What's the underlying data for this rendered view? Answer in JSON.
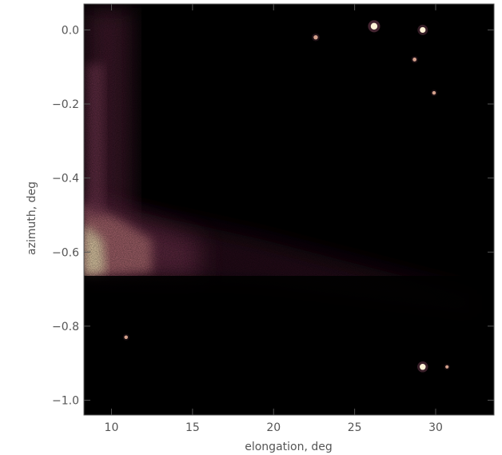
{
  "chart_data": {
    "type": "heatmap",
    "title": "",
    "xlabel": "elongation, deg",
    "ylabel": "azimuth, deg",
    "xlim": [
      8.3,
      33.6
    ],
    "ylim": [
      -1.04,
      0.07
    ],
    "x_ticks": [
      10,
      15,
      20,
      25,
      30
    ],
    "y_ticks": [
      0.0,
      -0.2,
      -0.4,
      -0.6,
      -0.8,
      -1.0
    ],
    "x_tick_labels": [
      "10",
      "15",
      "20",
      "25",
      "30"
    ],
    "y_tick_labels": [
      "0.0",
      "−0.2",
      "−0.4",
      "−0.6",
      "−0.8",
      "−1.0"
    ],
    "colormap": [
      "#000000",
      "#2a0e1c",
      "#5a2440",
      "#94506a",
      "#d4a18c",
      "#fff3d6"
    ],
    "grid": false,
    "bright_band": {
      "azimuth_range": [
        -0.66,
        -0.44
      ],
      "elongation_max": 18,
      "peak_intensity": 1.0
    },
    "stars": [
      {
        "x": 26.2,
        "y": 0.01,
        "intensity": 1.0
      },
      {
        "x": 29.2,
        "y": 0.0,
        "intensity": 0.8
      },
      {
        "x": 22.6,
        "y": -0.02,
        "intensity": 0.5
      },
      {
        "x": 28.7,
        "y": -0.08,
        "intensity": 0.4
      },
      {
        "x": 29.9,
        "y": -0.17,
        "intensity": 0.35
      },
      {
        "x": 29.2,
        "y": -0.91,
        "intensity": 0.85
      },
      {
        "x": 30.7,
        "y": -0.91,
        "intensity": 0.3
      },
      {
        "x": 10.9,
        "y": -0.83,
        "intensity": 0.35
      }
    ]
  }
}
